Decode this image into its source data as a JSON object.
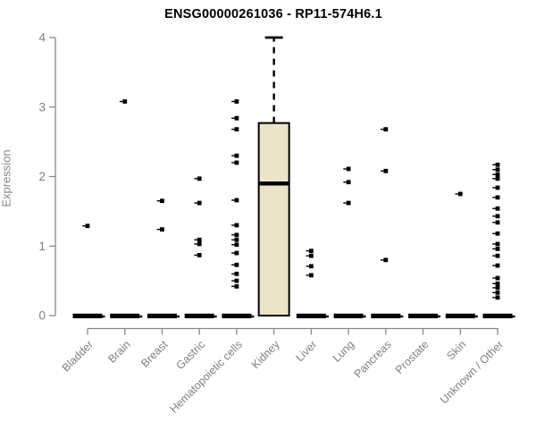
{
  "title": "ENSG00000261036 - RP11-574H6.1",
  "colors": {
    "box_fill": "#EBE4C9",
    "box_stroke": "#000000",
    "point_color": "#000000",
    "axis_color": "#888888",
    "tick_label_color": "#7f7f7f",
    "title_color": "#000000",
    "background": "#ffffff"
  },
  "chart_data": {
    "type": "boxplot",
    "title": "ENSG00000261036 - RP11-574H6.1",
    "xlabel": "",
    "ylabel": "Expression",
    "ylim": [
      0,
      4
    ],
    "yticks": [
      0,
      1,
      2,
      3,
      4
    ],
    "grid": false,
    "legend": "none",
    "categories": [
      "Bladder",
      "Brain",
      "Breast",
      "Gastric",
      "Hematopoietic cells",
      "Kidney",
      "Liver",
      "Lung",
      "Pancreas",
      "Prostate",
      "Skin",
      "Unknown / Other"
    ],
    "series": [
      {
        "name": "Bladder",
        "box": null,
        "zero_bar": true,
        "points": [
          1.29
        ]
      },
      {
        "name": "Brain",
        "box": null,
        "zero_bar": true,
        "points": [
          3.08
        ]
      },
      {
        "name": "Breast",
        "box": null,
        "zero_bar": true,
        "points": [
          1.65,
          1.24
        ]
      },
      {
        "name": "Gastric",
        "box": null,
        "zero_bar": true,
        "points": [
          1.97,
          1.62,
          1.09,
          1.03,
          0.87
        ]
      },
      {
        "name": "Hematopoietic cells",
        "box": null,
        "zero_bar": true,
        "points": [
          3.08,
          2.84,
          2.68,
          2.3,
          2.2,
          1.66,
          1.3,
          1.16,
          1.09,
          1.02,
          0.9,
          0.73,
          0.6,
          0.5,
          0.42
        ]
      },
      {
        "name": "Kidney",
        "box": {
          "whisker_low": 0,
          "q1": 0,
          "median": 1.9,
          "q3": 2.77,
          "whisker_high": 4.0
        },
        "zero_bar": false,
        "points": []
      },
      {
        "name": "Liver",
        "box": null,
        "zero_bar": true,
        "points": [
          0.93,
          0.86,
          0.71,
          0.58
        ]
      },
      {
        "name": "Lung",
        "box": null,
        "zero_bar": true,
        "points": [
          2.11,
          1.92,
          1.62
        ]
      },
      {
        "name": "Pancreas",
        "box": null,
        "zero_bar": true,
        "points": [
          2.68,
          2.08,
          0.8
        ]
      },
      {
        "name": "Prostate",
        "box": null,
        "zero_bar": true,
        "points": []
      },
      {
        "name": "Skin",
        "box": null,
        "zero_bar": true,
        "points": [
          1.75
        ]
      },
      {
        "name": "Unknown / Other",
        "box": null,
        "zero_bar": true,
        "points": [
          2.17,
          2.1,
          2.03,
          1.97,
          1.84,
          1.7,
          1.54,
          1.43,
          1.34,
          1.18,
          1.03,
          0.96,
          0.86,
          0.72,
          0.54,
          0.46,
          0.4,
          0.33,
          0.26
        ]
      }
    ]
  }
}
